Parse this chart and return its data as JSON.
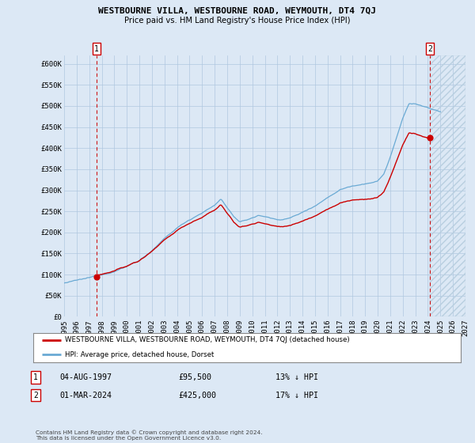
{
  "title": "WESTBOURNE VILLA, WESTBOURNE ROAD, WEYMOUTH, DT4 7QJ",
  "subtitle": "Price paid vs. HM Land Registry's House Price Index (HPI)",
  "bg_color": "#dce8f5",
  "plot_bg_color": "#dce8f5",
  "grid_color": "#b0c8e0",
  "hpi_color": "#6aaad4",
  "price_color": "#cc0000",
  "sale1_date": 1997.583,
  "sale1_price": 95500,
  "sale2_date": 2024.167,
  "sale2_price": 425000,
  "xlim": [
    1995,
    2027
  ],
  "ylim": [
    0,
    620000
  ],
  "yticks": [
    0,
    50000,
    100000,
    150000,
    200000,
    250000,
    300000,
    350000,
    400000,
    450000,
    500000,
    550000,
    600000
  ],
  "ytick_labels": [
    "£0",
    "£50K",
    "£100K",
    "£150K",
    "£200K",
    "£250K",
    "£300K",
    "£350K",
    "£400K",
    "£450K",
    "£500K",
    "£550K",
    "£600K"
  ],
  "xtick_years": [
    1995,
    1996,
    1997,
    1998,
    1999,
    2000,
    2001,
    2002,
    2003,
    2004,
    2005,
    2006,
    2007,
    2008,
    2009,
    2010,
    2011,
    2012,
    2013,
    2014,
    2015,
    2016,
    2017,
    2018,
    2019,
    2020,
    2021,
    2022,
    2023,
    2024,
    2025,
    2026,
    2027
  ],
  "legend_line1": "WESTBOURNE VILLA, WESTBOURNE ROAD, WEYMOUTH, DT4 7QJ (detached house)",
  "legend_line1_color": "#cc0000",
  "legend_line2": "HPI: Average price, detached house, Dorset",
  "legend_line2_color": "#6aaad4",
  "ann1_num": "1",
  "ann1_date": "04-AUG-1997",
  "ann1_price": "£95,500",
  "ann1_hpi": "13% ↓ HPI",
  "ann2_num": "2",
  "ann2_date": "01-MAR-2024",
  "ann2_price": "£425,000",
  "ann2_hpi": "17% ↓ HPI",
  "footer": "Contains HM Land Registry data © Crown copyright and database right 2024.\nThis data is licensed under the Open Government Licence v3.0.",
  "hatch_color": "#b8cfe0",
  "hatch_start": 2024.167
}
